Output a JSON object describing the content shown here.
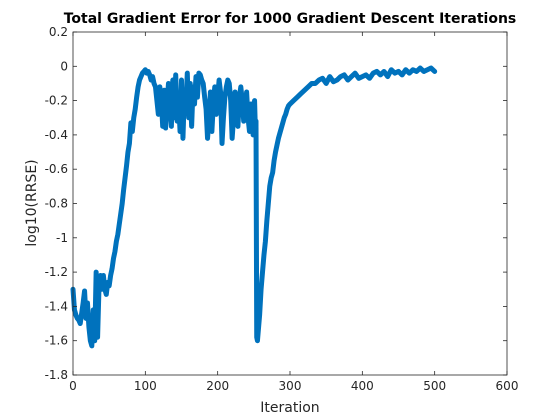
{
  "chart_data": {
    "type": "line",
    "title": "Total Gradient Error for 1000 Gradient Descent Iterations",
    "xlabel": "Iteration",
    "ylabel": "log10(RRSE)",
    "xlim": [
      0,
      600
    ],
    "ylim": [
      -1.8,
      0.2
    ],
    "xticks": [
      "0",
      "100",
      "200",
      "300",
      "400",
      "500",
      "600"
    ],
    "yticks": [
      "0.2",
      "0",
      "-0.2",
      "-0.4",
      "-0.6",
      "-0.8",
      "-1",
      "-1.2",
      "-1.4",
      "-1.6",
      "-1.8"
    ],
    "grid": false,
    "legend": "none",
    "series": [
      {
        "color": "#0072BD",
        "x": [
          0,
          2,
          4,
          6,
          8,
          10,
          12,
          14,
          16,
          18,
          20,
          22,
          24,
          26,
          28,
          30,
          32,
          34,
          36,
          38,
          40,
          42,
          44,
          46,
          48,
          50,
          52,
          54,
          56,
          58,
          60,
          62,
          64,
          66,
          68,
          70,
          72,
          74,
          76,
          78,
          80,
          82,
          84,
          86,
          88,
          90,
          92,
          94,
          96,
          98,
          100,
          102,
          104,
          106,
          108,
          110,
          112,
          114,
          116,
          118,
          120,
          122,
          124,
          126,
          128,
          130,
          132,
          134,
          136,
          138,
          140,
          142,
          144,
          146,
          148,
          150,
          152,
          154,
          156,
          158,
          160,
          162,
          164,
          166,
          168,
          170,
          172,
          174,
          176,
          178,
          180,
          182,
          184,
          186,
          188,
          190,
          192,
          194,
          196,
          198,
          200,
          202,
          204,
          206,
          208,
          210,
          212,
          214,
          216,
          218,
          220,
          222,
          224,
          226,
          228,
          230,
          232,
          234,
          236,
          238,
          240,
          242,
          244,
          246,
          248,
          249,
          250,
          251,
          252,
          253,
          254,
          255,
          256,
          258,
          260,
          262,
          264,
          266,
          268,
          270,
          272,
          274,
          276,
          278,
          280,
          282,
          284,
          286,
          288,
          290,
          292,
          294,
          296,
          298,
          300,
          305,
          310,
          315,
          320,
          325,
          330,
          335,
          340,
          345,
          350,
          355,
          360,
          365,
          370,
          375,
          380,
          385,
          390,
          395,
          400,
          405,
          410,
          415,
          420,
          425,
          430,
          435,
          440,
          445,
          450,
          455,
          460,
          465,
          470,
          475,
          480,
          485,
          490,
          495,
          500
        ],
        "y": [
          -1.3,
          -1.42,
          -1.45,
          -1.47,
          -1.48,
          -1.5,
          -1.44,
          -1.38,
          -1.31,
          -1.47,
          -1.38,
          -1.52,
          -1.6,
          -1.63,
          -1.42,
          -1.6,
          -1.2,
          -1.58,
          -1.28,
          -1.22,
          -1.3,
          -1.22,
          -1.3,
          -1.33,
          -1.26,
          -1.28,
          -1.22,
          -1.18,
          -1.12,
          -1.08,
          -1.02,
          -0.98,
          -0.92,
          -0.86,
          -0.8,
          -0.72,
          -0.65,
          -0.58,
          -0.5,
          -0.45,
          -0.33,
          -0.38,
          -0.3,
          -0.25,
          -0.18,
          -0.12,
          -0.08,
          -0.06,
          -0.04,
          -0.03,
          -0.02,
          -0.04,
          -0.03,
          -0.05,
          -0.08,
          -0.06,
          -0.1,
          -0.12,
          -0.2,
          -0.28,
          -0.12,
          -0.18,
          -0.35,
          -0.14,
          -0.36,
          -0.22,
          -0.1,
          -0.2,
          -0.35,
          -0.08,
          -0.3,
          -0.05,
          -0.32,
          -0.2,
          -0.38,
          -0.08,
          -0.42,
          -0.15,
          -0.25,
          -0.04,
          -0.3,
          -0.1,
          -0.35,
          -0.12,
          -0.22,
          -0.06,
          -0.18,
          -0.04,
          -0.05,
          -0.08,
          -0.1,
          -0.18,
          -0.25,
          -0.42,
          -0.3,
          -0.15,
          -0.38,
          -0.22,
          -0.12,
          -0.28,
          -0.18,
          -0.08,
          -0.15,
          -0.45,
          -0.3,
          -0.18,
          -0.12,
          -0.08,
          -0.1,
          -0.2,
          -0.42,
          -0.3,
          -0.15,
          -0.25,
          -0.35,
          -0.18,
          -0.12,
          -0.2,
          -0.32,
          -0.28,
          -0.15,
          -0.3,
          -0.38,
          -0.22,
          -0.3,
          -0.4,
          -0.25,
          -0.2,
          -0.35,
          -0.32,
          -1.58,
          -1.6,
          -1.55,
          -1.45,
          -1.3,
          -1.2,
          -1.1,
          -1.02,
          -0.9,
          -0.8,
          -0.7,
          -0.65,
          -0.62,
          -0.55,
          -0.5,
          -0.46,
          -0.42,
          -0.39,
          -0.36,
          -0.33,
          -0.3,
          -0.28,
          -0.25,
          -0.23,
          -0.22,
          -0.2,
          -0.18,
          -0.16,
          -0.14,
          -0.12,
          -0.1,
          -0.1,
          -0.08,
          -0.07,
          -0.1,
          -0.06,
          -0.09,
          -0.08,
          -0.06,
          -0.05,
          -0.08,
          -0.06,
          -0.04,
          -0.07,
          -0.06,
          -0.05,
          -0.07,
          -0.04,
          -0.03,
          -0.05,
          -0.03,
          -0.06,
          -0.02,
          -0.04,
          -0.03,
          -0.05,
          -0.02,
          -0.04,
          -0.02,
          -0.03,
          -0.01,
          -0.03,
          -0.02,
          -0.01,
          -0.03
        ]
      }
    ]
  }
}
